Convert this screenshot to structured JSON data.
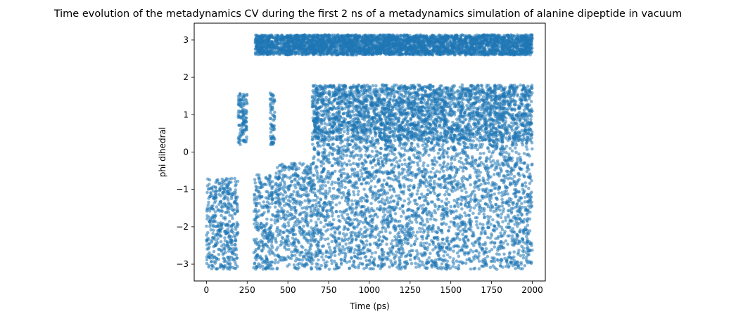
{
  "chart_data": {
    "type": "scatter",
    "title": "Time evolution of the metadynamics CV during the first 2 ns of a metadynamics simulation of alanine dipeptide in vacuum",
    "xlabel": "Time (ps)",
    "ylabel": "phi dihedral",
    "xlim": [
      -75,
      2080
    ],
    "ylim": [
      -3.45,
      3.45
    ],
    "xticks": [
      0,
      250,
      500,
      750,
      1000,
      1250,
      1500,
      1750,
      2000
    ],
    "xtick_labels": [
      "0",
      "250",
      "500",
      "750",
      "1000",
      "1250",
      "1500",
      "1750",
      "2000"
    ],
    "yticks": [
      -3,
      -2,
      -1,
      0,
      1,
      2,
      3
    ],
    "ytick_labels": [
      "−3",
      "−2",
      "−1",
      "0",
      "1",
      "2",
      "3"
    ],
    "grid": false,
    "legend": "none",
    "marker_color": "#1f77b4",
    "marker_alpha": 0.55,
    "series": [
      {
        "segments": [
          {
            "t": [
              0,
              195
            ],
            "y": [
              -3.14,
              -0.7
            ]
          },
          {
            "t": [
              195,
              250
            ],
            "y": [
              0.2,
              1.6
            ]
          },
          {
            "t": [
              290,
              410
            ],
            "y": [
              -3.14,
              -0.6
            ]
          },
          {
            "t": [
              390,
              420
            ],
            "y": [
              0.2,
              1.6
            ]
          },
          {
            "t": [
              420,
              650
            ],
            "y": [
              -3.14,
              -0.3
            ]
          },
          {
            "t": [
              650,
              2000
            ],
            "y": [
              -3.14,
              0.3
            ]
          },
          {
            "t": [
              650,
              2000
            ],
            "y": [
              0.3,
              1.8
            ]
          },
          {
            "t": [
              300,
              2000
            ],
            "y": [
              2.6,
              3.14
            ]
          }
        ]
      }
    ]
  }
}
